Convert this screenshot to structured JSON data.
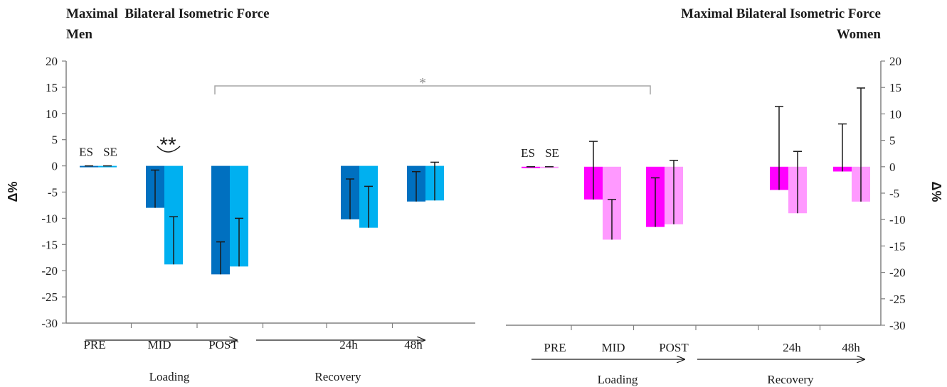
{
  "colors": {
    "men_es": "#0070c0",
    "men_se": "#00b0f0",
    "women_es": "#ff00ff",
    "women_se": "#ff99ff",
    "axis": "#808080",
    "bracket": "#a6a6a6"
  },
  "annotations": {
    "mid_sig": "**",
    "between_sig": "*"
  },
  "chart_data": [
    {
      "type": "bar",
      "title_line1": "Maximal  Bilateral Isometric Force",
      "title_line2": "Men",
      "ylabel": "Δ%",
      "ylim": [
        -30,
        20
      ],
      "yticks": [
        "20",
        "15",
        "10",
        "5",
        "0",
        "-5",
        "-10",
        "-15",
        "-20",
        "-25",
        "-30"
      ],
      "categories": [
        "PRE",
        "MID",
        "POST",
        "24h",
        "48h"
      ],
      "group_labels": [
        "Loading",
        "Recovery"
      ],
      "series": [
        {
          "name": "ES",
          "values": [
            0,
            -8,
            -20.7,
            -10.2,
            -6.8
          ],
          "errors": [
            0,
            7.2,
            6.2,
            7.7,
            5.7
          ]
        },
        {
          "name": "SE",
          "values": [
            0,
            -18.8,
            -19.2,
            -11.8,
            -6.6
          ],
          "errors": [
            0,
            9.1,
            9.2,
            7.9,
            7.3
          ]
        }
      ]
    },
    {
      "type": "bar",
      "title_line1": "Maximal Bilateral Isometric Force",
      "title_line2": "Women",
      "ylabel": "Δ%",
      "ylim": [
        -30,
        20
      ],
      "yticks": [
        "20",
        "15",
        "10",
        "5",
        "0",
        "-5",
        "-10",
        "-15",
        "-20",
        "-25",
        "-30"
      ],
      "categories": [
        "PRE",
        "MID",
        "POST",
        "24h",
        "48h"
      ],
      "group_labels": [
        "Loading",
        "Recovery"
      ],
      "series": [
        {
          "name": "ES",
          "values": [
            0,
            -6.2,
            -11.4,
            -4.4,
            -0.9
          ],
          "errors": [
            0,
            11,
            9.3,
            15.8,
            9
          ]
        },
        {
          "name": "SE",
          "values": [
            0,
            -13.8,
            -10.9,
            -8.8,
            -6.6
          ],
          "errors": [
            0,
            7.6,
            12.1,
            11.7,
            21.5
          ]
        }
      ]
    }
  ]
}
